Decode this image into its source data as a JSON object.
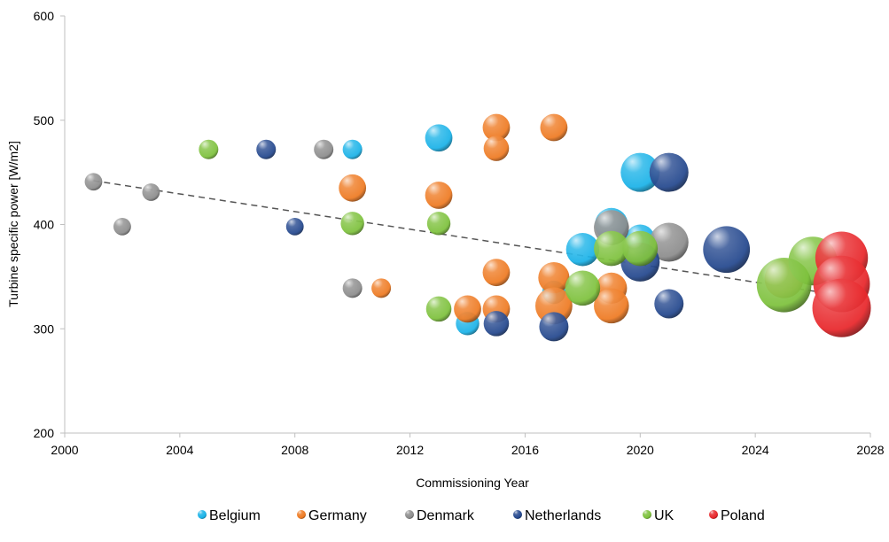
{
  "chart_data": {
    "type": "scatter",
    "xlabel": "Commissioning Year",
    "ylabel": "Turbine specific power [W/m2]",
    "xlim": [
      2000,
      2028
    ],
    "ylim": [
      200,
      600
    ],
    "xticks": [
      "2000",
      "2004",
      "2008",
      "2012",
      "2016",
      "2020",
      "2024",
      "2028"
    ],
    "yticks": [
      "200",
      "300",
      "400",
      "500",
      "600"
    ],
    "legend_position": "bottom",
    "grid": false,
    "trendline": {
      "style": "dashed",
      "x": [
        2001,
        2027
      ],
      "y": [
        442,
        332
      ]
    },
    "series": [
      {
        "name": "Belgium",
        "color": "#1ab2e8",
        "points": [
          {
            "x": 2010,
            "y": 472,
            "size": 1.0
          },
          {
            "x": 2013,
            "y": 483,
            "size": 1.4
          },
          {
            "x": 2014,
            "y": 305,
            "size": 1.2
          },
          {
            "x": 2017,
            "y": 335,
            "size": 1.2
          },
          {
            "x": 2018,
            "y": 376,
            "size": 1.7
          },
          {
            "x": 2019,
            "y": 400,
            "size": 1.7
          },
          {
            "x": 2020,
            "y": 450,
            "size": 2.0
          },
          {
            "x": 2020,
            "y": 386,
            "size": 1.5
          }
        ]
      },
      {
        "name": "Germany",
        "color": "#ee7a22",
        "points": [
          {
            "x": 2010,
            "y": 435,
            "size": 1.4
          },
          {
            "x": 2011,
            "y": 339,
            "size": 1.0
          },
          {
            "x": 2013,
            "y": 428,
            "size": 1.4
          },
          {
            "x": 2014,
            "y": 319,
            "size": 1.4
          },
          {
            "x": 2015,
            "y": 493,
            "size": 1.4
          },
          {
            "x": 2015,
            "y": 473,
            "size": 1.3
          },
          {
            "x": 2015,
            "y": 354,
            "size": 1.4
          },
          {
            "x": 2015,
            "y": 319,
            "size": 1.4
          },
          {
            "x": 2017,
            "y": 493,
            "size": 1.4
          },
          {
            "x": 2017,
            "y": 349,
            "size": 1.6
          },
          {
            "x": 2017,
            "y": 322,
            "size": 1.9
          },
          {
            "x": 2019,
            "y": 339,
            "size": 1.6
          },
          {
            "x": 2019,
            "y": 322,
            "size": 1.8
          },
          {
            "x": 2025,
            "y": 348,
            "size": 2.0
          }
        ]
      },
      {
        "name": "Denmark",
        "color": "#8c8c8c",
        "points": [
          {
            "x": 2001,
            "y": 441,
            "size": 0.9
          },
          {
            "x": 2002,
            "y": 398,
            "size": 0.9
          },
          {
            "x": 2003,
            "y": 431,
            "size": 0.9
          },
          {
            "x": 2009,
            "y": 472,
            "size": 1.0
          },
          {
            "x": 2010,
            "y": 339,
            "size": 1.0
          },
          {
            "x": 2019,
            "y": 397,
            "size": 1.8
          },
          {
            "x": 2021,
            "y": 383,
            "size": 2.0
          }
        ]
      },
      {
        "name": "Netherlands",
        "color": "#24488e",
        "points": [
          {
            "x": 2007,
            "y": 472,
            "size": 1.0
          },
          {
            "x": 2008,
            "y": 398,
            "size": 0.9
          },
          {
            "x": 2015,
            "y": 305,
            "size": 1.3
          },
          {
            "x": 2017,
            "y": 302,
            "size": 1.5
          },
          {
            "x": 2020,
            "y": 364,
            "size": 2.0
          },
          {
            "x": 2021,
            "y": 450,
            "size": 2.0
          },
          {
            "x": 2021,
            "y": 324,
            "size": 1.5
          },
          {
            "x": 2023,
            "y": 376,
            "size": 2.4
          }
        ]
      },
      {
        "name": "UK",
        "color": "#7dc13c",
        "points": [
          {
            "x": 2005,
            "y": 472,
            "size": 1.0
          },
          {
            "x": 2010,
            "y": 401,
            "size": 1.2
          },
          {
            "x": 2013,
            "y": 401,
            "size": 1.2
          },
          {
            "x": 2013,
            "y": 319,
            "size": 1.3
          },
          {
            "x": 2018,
            "y": 339,
            "size": 1.8
          },
          {
            "x": 2019,
            "y": 377,
            "size": 1.8
          },
          {
            "x": 2020,
            "y": 377,
            "size": 1.8
          },
          {
            "x": 2026,
            "y": 365,
            "size": 2.5
          },
          {
            "x": 2025,
            "y": 342,
            "size": 2.8
          }
        ]
      },
      {
        "name": "Poland",
        "color": "#e8262a",
        "points": [
          {
            "x": 2027,
            "y": 368,
            "size": 2.7
          },
          {
            "x": 2027,
            "y": 343,
            "size": 2.9
          },
          {
            "x": 2027,
            "y": 320,
            "size": 3.0
          }
        ]
      }
    ]
  }
}
